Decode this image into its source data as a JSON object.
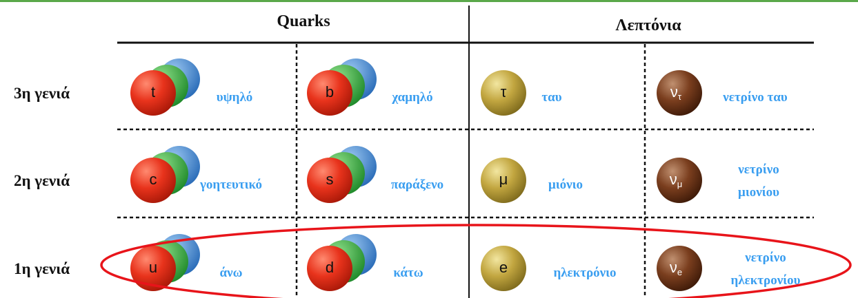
{
  "header": {
    "quarks": "Quarks",
    "leptons": "Λεπτόνια"
  },
  "rows": [
    {
      "label": "3η γενιά",
      "cells": [
        {
          "symbol": "t",
          "name": "υψηλό"
        },
        {
          "symbol": "b",
          "name": "χαμηλό"
        },
        {
          "symbol": "τ",
          "name": "ταυ"
        },
        {
          "symbol": "ν",
          "subscript": "τ",
          "name": "νετρίνο ταυ"
        }
      ]
    },
    {
      "label": "2η γενιά",
      "cells": [
        {
          "symbol": "c",
          "name": "γοητευτικό"
        },
        {
          "symbol": "s",
          "name": "παράξενο"
        },
        {
          "symbol": "μ",
          "name": "μιόνιο"
        },
        {
          "symbol": "ν",
          "subscript": "μ",
          "name_lines": [
            "νετρίνο",
            "μιονίου"
          ]
        }
      ]
    },
    {
      "label": "1η γενιά",
      "cells": [
        {
          "symbol": "u",
          "name": "άνω"
        },
        {
          "symbol": "d",
          "name": "κάτω"
        },
        {
          "symbol": "e",
          "name": "ηλεκτρόνιο"
        },
        {
          "symbol": "ν",
          "subscript": "e",
          "name_lines": [
            "νετρίνο",
            "ηλεκτρονίου"
          ]
        }
      ]
    }
  ]
}
